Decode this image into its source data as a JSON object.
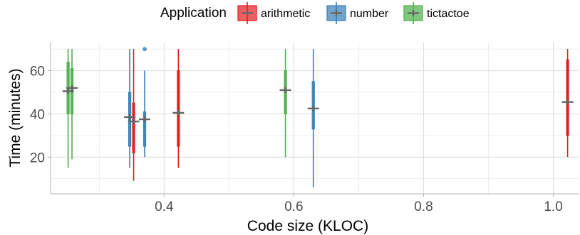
{
  "chart_data": {
    "type": "boxplot",
    "title": "",
    "xlabel": "Code size (KLOC)",
    "ylabel": "Time (minutes)",
    "xlim": [
      0.225,
      1.04
    ],
    "ylim": [
      3,
      73
    ],
    "x_ticks": [
      0.4,
      0.6,
      0.8,
      1.0
    ],
    "x_tick_labels": [
      "0.4",
      "0.6",
      "0.8",
      "1.0"
    ],
    "y_ticks": [
      20,
      40,
      60
    ],
    "y_tick_labels": [
      "20",
      "40",
      "60"
    ],
    "grid": true,
    "legend": {
      "title": "Application",
      "position": "top",
      "entries": [
        "arithmetic",
        "number",
        "tictactoe"
      ]
    },
    "colors": {
      "arithmetic": "#e41a1c",
      "number": "#377eb8",
      "tictactoe": "#4daf4a",
      "mean_marker": "#666666"
    },
    "series": [
      {
        "name": "tictactoe",
        "boxes": [
          {
            "x": 0.252,
            "whisker_low": 15,
            "q1": 40,
            "median": 51,
            "q3": 64,
            "whisker_high": 70,
            "mean": 50.5
          },
          {
            "x": 0.258,
            "whisker_low": 19,
            "q1": 40,
            "median": 50,
            "q3": 61,
            "whisker_high": 70,
            "mean": 52
          },
          {
            "x": 0.587,
            "whisker_low": 20,
            "q1": 40,
            "median": 51,
            "q3": 60,
            "whisker_high": 70,
            "mean": 51
          }
        ],
        "outliers": []
      },
      {
        "name": "number",
        "boxes": [
          {
            "x": 0.347,
            "whisker_low": 15,
            "q1": 25,
            "median": 37,
            "q3": 50,
            "whisker_high": 70,
            "mean": 38.5
          },
          {
            "x": 0.37,
            "whisker_low": 20,
            "q1": 25,
            "median": 34,
            "q3": 41,
            "whisker_high": 60,
            "mean": 37.5
          },
          {
            "x": 0.63,
            "whisker_low": 6,
            "q1": 33,
            "median": 43,
            "q3": 55,
            "whisker_high": 70,
            "mean": 42.5
          }
        ],
        "outliers": [
          {
            "x": 0.37,
            "y": 70
          }
        ]
      },
      {
        "name": "arithmetic",
        "boxes": [
          {
            "x": 0.353,
            "whisker_low": 9,
            "q1": 22,
            "median": 37,
            "q3": 45,
            "whisker_high": 70,
            "mean": 36.5
          },
          {
            "x": 0.422,
            "whisker_low": 15,
            "q1": 25,
            "median": 40,
            "q3": 60,
            "whisker_high": 70,
            "mean": 40.5
          },
          {
            "x": 1.022,
            "whisker_low": 20,
            "q1": 30,
            "median": 45,
            "q3": 65,
            "whisker_high": 70,
            "mean": 45.5
          }
        ],
        "outliers": []
      }
    ]
  }
}
